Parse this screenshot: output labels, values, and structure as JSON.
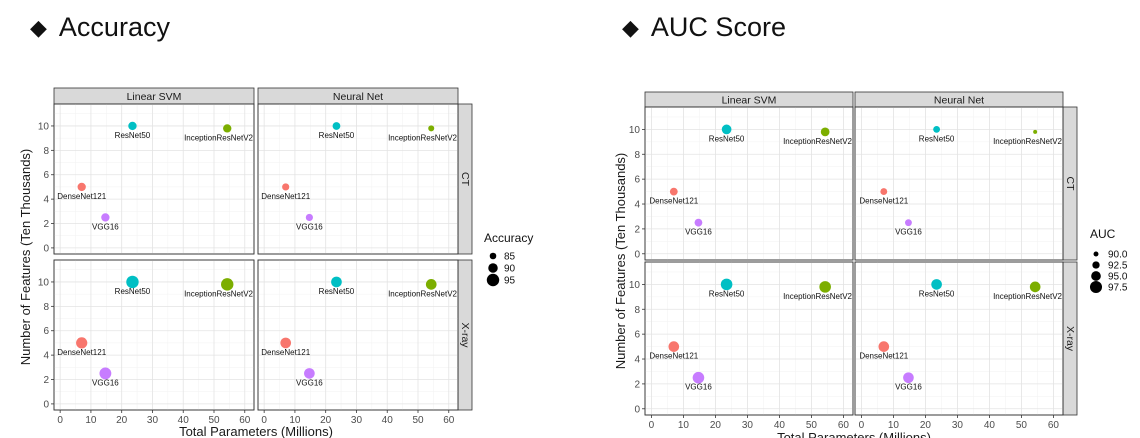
{
  "headings": {
    "left": "Accuracy",
    "right": "AUC Score",
    "bullet": "◆"
  },
  "chart_data": [
    {
      "type": "scatter",
      "title": "Accuracy",
      "xlabel": "Total Parameters (Millions)",
      "ylabel": "Number of Features (Ten Thousands)",
      "xlim": [
        -2,
        63
      ],
      "ylim": [
        -0.5,
        11.8
      ],
      "xticks": [
        0,
        10,
        20,
        30,
        40,
        50,
        60
      ],
      "yticks": [
        0,
        2,
        4,
        6,
        8,
        10
      ],
      "col_facets": [
        "Linear SVM",
        "Neural Net"
      ],
      "row_facets": [
        "CT",
        "X-ray"
      ],
      "size_legend": {
        "title": "Accuracy",
        "values": [
          85,
          90,
          95
        ]
      },
      "size_range": [
        84,
        96
      ],
      "models": [
        {
          "name": "DenseNet121",
          "params": 7,
          "features": 5,
          "color": "#F8766D"
        },
        {
          "name": "ResNet50",
          "params": 23.5,
          "features": 10,
          "color": "#00BFC4"
        },
        {
          "name": "InceptionResNetV2",
          "params": 54.3,
          "features": 9.8,
          "color": "#7CAE00"
        },
        {
          "name": "VGG16",
          "params": 14.7,
          "features": 2.5,
          "color": "#C77CFF"
        }
      ],
      "panels": [
        {
          "row": "CT",
          "col": "Linear SVM",
          "values": {
            "DenseNet121": 88,
            "ResNet50": 88,
            "InceptionResNetV2": 88,
            "VGG16": 88
          }
        },
        {
          "row": "CT",
          "col": "Neural Net",
          "values": {
            "DenseNet121": 86,
            "ResNet50": 87,
            "InceptionResNetV2": 84,
            "VGG16": 86
          }
        },
        {
          "row": "X-ray",
          "col": "Linear SVM",
          "values": {
            "DenseNet121": 93,
            "ResNet50": 95,
            "InceptionResNetV2": 95,
            "VGG16": 94
          }
        },
        {
          "row": "X-ray",
          "col": "Neural Net",
          "values": {
            "DenseNet121": 92,
            "ResNet50": 92,
            "InceptionResNetV2": 92,
            "VGG16": 92
          }
        }
      ]
    },
    {
      "type": "scatter",
      "title": "AUC Score",
      "xlabel": "Total Parameters (Millions)",
      "ylabel": "Number of Features (Ten Thousands)",
      "xlim": [
        -2,
        63
      ],
      "ylim": [
        -0.5,
        11.8
      ],
      "xticks": [
        0,
        10,
        20,
        30,
        40,
        50,
        60
      ],
      "yticks": [
        0,
        2,
        4,
        6,
        8,
        10
      ],
      "col_facets": [
        "Linear SVM",
        "Neural Net"
      ],
      "row_facets": [
        "CT",
        "X-ray"
      ],
      "size_legend": {
        "title": "AUC",
        "values": [
          "90.0",
          "92.5",
          "95.0",
          "97.5"
        ]
      },
      "size_range": [
        89,
        98.5
      ],
      "models": [
        {
          "name": "DenseNet121",
          "params": 7,
          "features": 5,
          "color": "#F8766D"
        },
        {
          "name": "ResNet50",
          "params": 23.5,
          "features": 10,
          "color": "#00BFC4"
        },
        {
          "name": "InceptionResNetV2",
          "params": 54.3,
          "features": 9.8,
          "color": "#7CAE00"
        },
        {
          "name": "VGG16",
          "params": 14.7,
          "features": 2.5,
          "color": "#C77CFF"
        }
      ],
      "panels": [
        {
          "row": "CT",
          "col": "Linear SVM",
          "values": {
            "DenseNet121": 93,
            "ResNet50": 95,
            "InceptionResNetV2": 94,
            "VGG16": 93
          }
        },
        {
          "row": "CT",
          "col": "Neural Net",
          "values": {
            "DenseNet121": 92,
            "ResNet50": 92,
            "InceptionResNetV2": 89,
            "VGG16": 92
          }
        },
        {
          "row": "X-ray",
          "col": "Linear SVM",
          "values": {
            "DenseNet121": 96,
            "ResNet50": 97,
            "InceptionResNetV2": 97,
            "VGG16": 97
          }
        },
        {
          "row": "X-ray",
          "col": "Neural Net",
          "values": {
            "DenseNet121": 96,
            "ResNet50": 96,
            "InceptionResNetV2": 96,
            "VGG16": 96
          }
        }
      ]
    }
  ]
}
